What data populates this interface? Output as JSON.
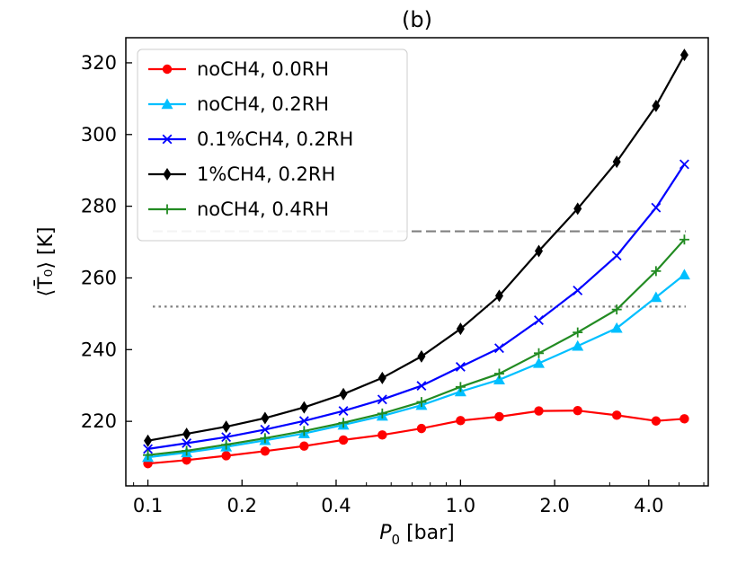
{
  "chart_data": {
    "type": "line",
    "title": "(b)",
    "xlabel_main": "P",
    "xlabel_sub": "0",
    "xlabel_unit": " [bar]",
    "ylabel": "⟨T̄₀⟩ [K]",
    "xscale": "log",
    "xlim": [
      0.085,
      6.2
    ],
    "ylim": [
      202,
      327
    ],
    "xticks": [
      {
        "value": 0.1,
        "label": "0.1"
      },
      {
        "value": 0.2,
        "label": "0.2"
      },
      {
        "value": 0.4,
        "label": "0.4"
      },
      {
        "value": 1.0,
        "label": "1.0"
      },
      {
        "value": 2.0,
        "label": "2.0"
      },
      {
        "value": 4.0,
        "label": "4.0"
      }
    ],
    "yticks": [
      {
        "value": 220,
        "label": "220"
      },
      {
        "value": 240,
        "label": "240"
      },
      {
        "value": 260,
        "label": "260"
      },
      {
        "value": 280,
        "label": "280"
      },
      {
        "value": 300,
        "label": "300"
      },
      {
        "value": 320,
        "label": "320"
      }
    ],
    "x": [
      0.1,
      0.133,
      0.178,
      0.237,
      0.316,
      0.422,
      0.562,
      0.75,
      1.0,
      1.33,
      1.78,
      2.37,
      3.16,
      4.22,
      5.2
    ],
    "series": [
      {
        "name": "noCH4, 0.0RH",
        "color": "#ff0000",
        "marker": "circle",
        "values": [
          208.2,
          209.2,
          210.4,
          211.7,
          213.1,
          214.8,
          216.2,
          218.0,
          220.2,
          221.3,
          222.9,
          223.0,
          221.7,
          220.1,
          220.7
        ]
      },
      {
        "name": "noCH4, 0.2RH",
        "color": "#00bfff",
        "marker": "triangle",
        "values": [
          210.0,
          211.3,
          212.9,
          214.7,
          216.6,
          219.0,
          221.5,
          224.5,
          228.3,
          231.6,
          236.2,
          241.0,
          246.0,
          254.6,
          260.9
        ]
      },
      {
        "name": "0.1%CH4, 0.2RH",
        "color": "#0000ff",
        "marker": "x",
        "values": [
          212.3,
          213.9,
          215.6,
          217.7,
          220.1,
          222.9,
          226.1,
          229.9,
          235.2,
          240.4,
          248.2,
          256.5,
          266.2,
          279.6,
          291.7
        ]
      },
      {
        "name": "1%CH4, 0.2RH",
        "color": "#000000",
        "marker": "diamond",
        "values": [
          214.6,
          216.5,
          218.5,
          220.9,
          223.9,
          227.6,
          232.1,
          238.1,
          245.8,
          255.0,
          267.5,
          279.3,
          292.4,
          308.0,
          322.2
        ]
      },
      {
        "name": "noCH4, 0.4RH",
        "color": "#228b22",
        "marker": "plus",
        "values": [
          210.6,
          211.8,
          213.5,
          215.3,
          217.3,
          219.6,
          222.2,
          225.4,
          229.6,
          233.3,
          239.0,
          244.8,
          251.2,
          261.9,
          270.7
        ]
      }
    ],
    "reference_lines": [
      {
        "value": 273,
        "style": "dashed",
        "color": "#808080"
      },
      {
        "value": 252,
        "style": "dotted",
        "color": "#808080"
      }
    ],
    "legend_position": "upper-left"
  }
}
